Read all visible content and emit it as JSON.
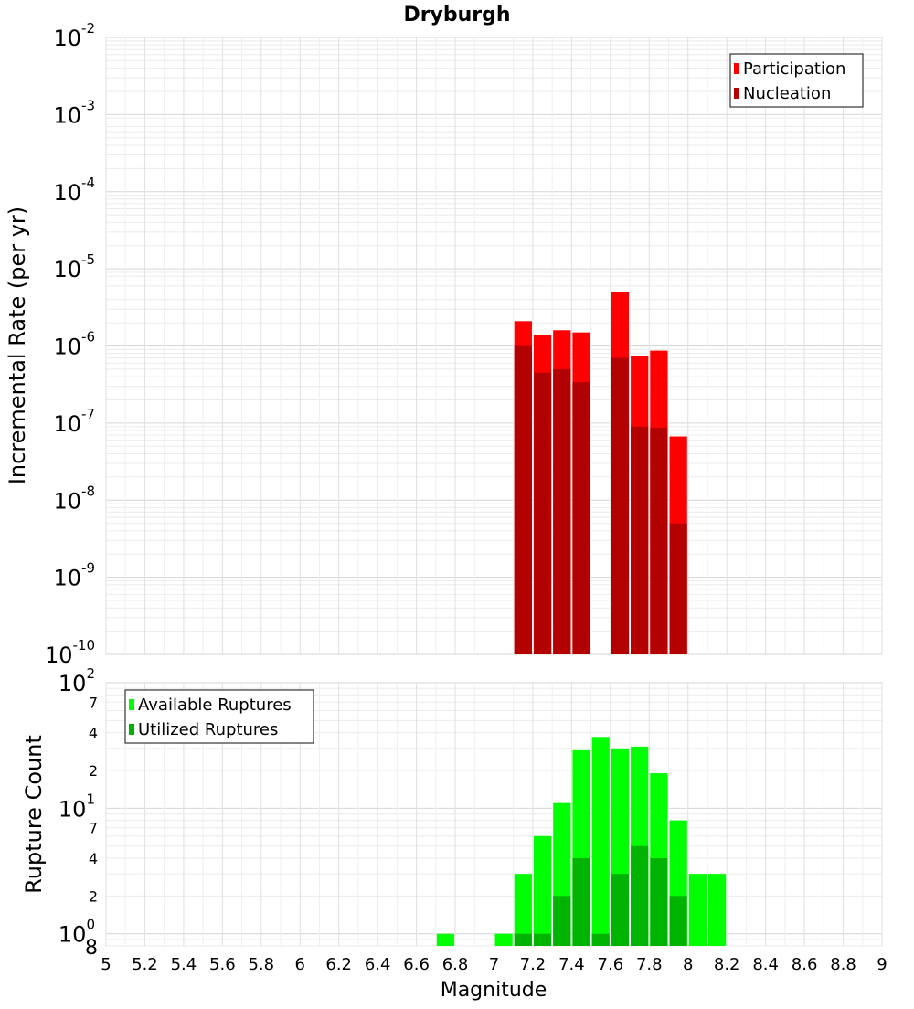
{
  "chart_data": [
    {
      "type": "bar",
      "title": "Dryburgh",
      "ylabel": "Incremental Rate (per yr)",
      "yscale": "log",
      "ylim": [
        1e-10,
        0.01
      ],
      "y_major_ticks": [
        {
          "base": "10",
          "exp": "-10"
        },
        {
          "base": "10",
          "exp": "-9"
        },
        {
          "base": "10",
          "exp": "-8"
        },
        {
          "base": "10",
          "exp": "-7"
        },
        {
          "base": "10",
          "exp": "-6"
        },
        {
          "base": "10",
          "exp": "-5"
        },
        {
          "base": "10",
          "exp": "-4"
        },
        {
          "base": "10",
          "exp": "-3"
        },
        {
          "base": "10",
          "exp": "-2"
        }
      ],
      "legend": {
        "position": "top-right",
        "entries": [
          "Participation",
          "Nucleation"
        ]
      },
      "colors": {
        "Participation": "#ff0000",
        "Nucleation": "#b30000"
      },
      "series": [
        {
          "name": "Participation",
          "x": [
            7.15,
            7.25,
            7.35,
            7.45,
            7.65,
            7.75,
            7.85,
            7.95
          ],
          "values": [
            2.1e-06,
            1.4e-06,
            1.6e-06,
            1.5e-06,
            5e-06,
            7.5e-07,
            8.7e-07,
            6.7e-08
          ]
        },
        {
          "name": "Nucleation",
          "x": [
            7.15,
            7.25,
            7.35,
            7.45,
            7.65,
            7.75,
            7.85,
            7.95
          ],
          "values": [
            1e-06,
            4.5e-07,
            5e-07,
            3.4e-07,
            7e-07,
            9e-08,
            8.7e-08,
            5e-09
          ]
        }
      ]
    },
    {
      "type": "bar",
      "xlabel": "Magnitude",
      "ylabel": "Rupture Count",
      "yscale": "log",
      "ylim": [
        0.8,
        100
      ],
      "xlim": [
        5,
        9
      ],
      "x_ticks": [
        "5",
        "5.2",
        "5.4",
        "5.6",
        "5.8",
        "6",
        "6.2",
        "6.4",
        "6.6",
        "6.8",
        "7",
        "7.2",
        "7.4",
        "7.6",
        "7.8",
        "8",
        "8.2",
        "8.4",
        "8.6",
        "8.8",
        "9"
      ],
      "y_major_ticks": [
        {
          "base": "10",
          "exp": "0"
        },
        {
          "base": "10",
          "exp": "1"
        },
        {
          "base": "10",
          "exp": "2"
        }
      ],
      "y_minor_labels": [
        {
          "value": 0.8,
          "label": "8"
        },
        {
          "value": 2,
          "label": "2"
        },
        {
          "value": 4,
          "label": "4"
        },
        {
          "value": 7,
          "label": "7"
        },
        {
          "value": 20,
          "label": "2"
        },
        {
          "value": 40,
          "label": "4"
        },
        {
          "value": 70,
          "label": "7"
        }
      ],
      "legend": {
        "position": "top-left",
        "entries": [
          "Available Ruptures",
          "Utilized Ruptures"
        ]
      },
      "colors": {
        "Available Ruptures": "#00ff00",
        "Utilized Ruptures": "#00b300"
      },
      "series": [
        {
          "name": "Available Ruptures",
          "x": [
            6.75,
            7.05,
            7.15,
            7.25,
            7.35,
            7.45,
            7.55,
            7.65,
            7.75,
            7.85,
            7.95,
            8.05,
            8.15
          ],
          "values": [
            1,
            1,
            3,
            6,
            11,
            29,
            37,
            30,
            31,
            19,
            8,
            3,
            3
          ]
        },
        {
          "name": "Utilized Ruptures",
          "x": [
            7.15,
            7.25,
            7.35,
            7.45,
            7.55,
            7.65,
            7.75,
            7.85,
            7.95
          ],
          "values": [
            1,
            1,
            2,
            4,
            1,
            3,
            5,
            4,
            2
          ]
        }
      ]
    }
  ]
}
